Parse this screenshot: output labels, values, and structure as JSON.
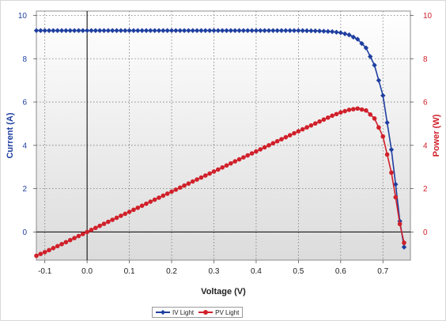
{
  "chart_data": {
    "type": "line",
    "xlabel": "Voltage (V)",
    "ylabel_left": "Current (A)",
    "ylabel_right": "Power (W)",
    "xlim": [
      -0.12,
      0.765
    ],
    "ylim_left": [
      -1.3,
      10.2
    ],
    "ylim_right": [
      -1.3,
      10.2
    ],
    "x_ticks": [
      -0.1,
      0.0,
      0.1,
      0.2,
      0.3,
      0.4,
      0.5,
      0.6,
      0.7
    ],
    "x_tick_labels": [
      "-0.1",
      "0.0",
      "0.1",
      "0.2",
      "0.3",
      "0.4",
      "0.5",
      "0.6",
      "0.7"
    ],
    "y_ticks_left": [
      0,
      2,
      4,
      6,
      8,
      10
    ],
    "y_tick_labels_left": [
      "0",
      "2",
      "4",
      "6",
      "8",
      "10"
    ],
    "y_ticks_right": [
      0,
      2,
      4,
      6,
      8,
      10
    ],
    "y_tick_labels_right": [
      "0",
      "2",
      "4",
      "6",
      "8",
      "10"
    ],
    "grid": true,
    "legend_position": "bottom",
    "series": [
      {
        "name": "IV Light",
        "axis": "left",
        "color": "#1f3fa0",
        "marker": "diamond",
        "x": [
          -0.12,
          -0.1,
          -0.05,
          0.0,
          0.05,
          0.1,
          0.15,
          0.2,
          0.25,
          0.3,
          0.35,
          0.4,
          0.45,
          0.5,
          0.55,
          0.58,
          0.6,
          0.62,
          0.64,
          0.66,
          0.68,
          0.7,
          0.72,
          0.73,
          0.74,
          0.75
        ],
        "y": [
          9.3,
          9.3,
          9.3,
          9.3,
          9.3,
          9.3,
          9.3,
          9.3,
          9.3,
          9.3,
          9.3,
          9.3,
          9.3,
          9.3,
          9.28,
          9.25,
          9.2,
          9.1,
          8.9,
          8.5,
          7.7,
          6.3,
          3.8,
          2.2,
          0.5,
          -0.7
        ]
      },
      {
        "name": "PV Light",
        "axis": "right",
        "color": "#d0202a",
        "marker": "circle",
        "x": [
          -0.12,
          -0.1,
          -0.05,
          0.0,
          0.05,
          0.1,
          0.15,
          0.2,
          0.25,
          0.3,
          0.35,
          0.4,
          0.45,
          0.5,
          0.55,
          0.58,
          0.6,
          0.62,
          0.64,
          0.66,
          0.68,
          0.7,
          0.72,
          0.73,
          0.74,
          0.75
        ],
        "y": [
          -1.1,
          -0.93,
          -0.47,
          0.0,
          0.47,
          0.93,
          1.4,
          1.86,
          2.33,
          2.79,
          3.26,
          3.72,
          4.19,
          4.65,
          5.1,
          5.37,
          5.52,
          5.64,
          5.7,
          5.61,
          5.24,
          4.41,
          2.74,
          1.6,
          0.37,
          -0.5
        ]
      }
    ]
  }
}
